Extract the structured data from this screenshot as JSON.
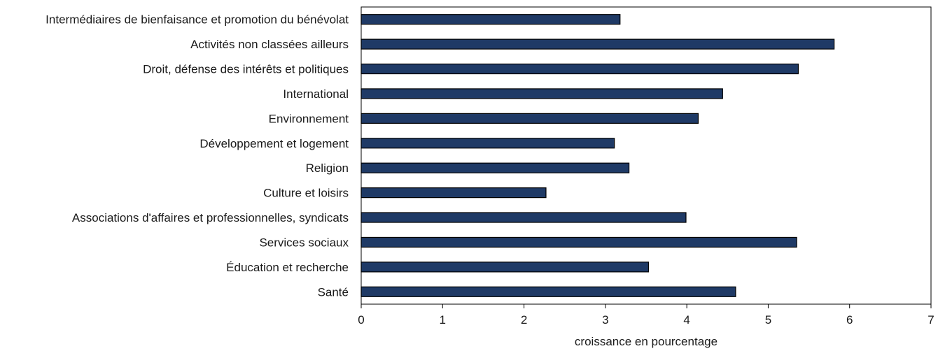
{
  "chart_data": {
    "type": "bar",
    "orientation": "horizontal",
    "title": "",
    "xlabel": "croissance en pourcentage",
    "ylabel": "",
    "xlim": [
      0,
      7
    ],
    "xticks": [
      "0",
      "1",
      "2",
      "3",
      "4",
      "5",
      "6",
      "7"
    ],
    "grid": false,
    "bar_color": "#1f3a66",
    "categories": [
      "Intermédiaires de bienfaisance et promotion du bénévolat",
      "Activités non classées ailleurs",
      "Droit, défense des intérêts et politiques",
      "International",
      "Environnement",
      "Développement et logement",
      "Religion",
      "Culture et loisirs",
      "Associations d'affaires et professionnelles, syndicats",
      "Services sociaux",
      "Éducation et recherche",
      "Santé"
    ],
    "values": [
      3.18,
      5.81,
      5.37,
      4.44,
      4.14,
      3.11,
      3.29,
      2.27,
      3.99,
      5.35,
      3.53,
      4.6
    ]
  }
}
